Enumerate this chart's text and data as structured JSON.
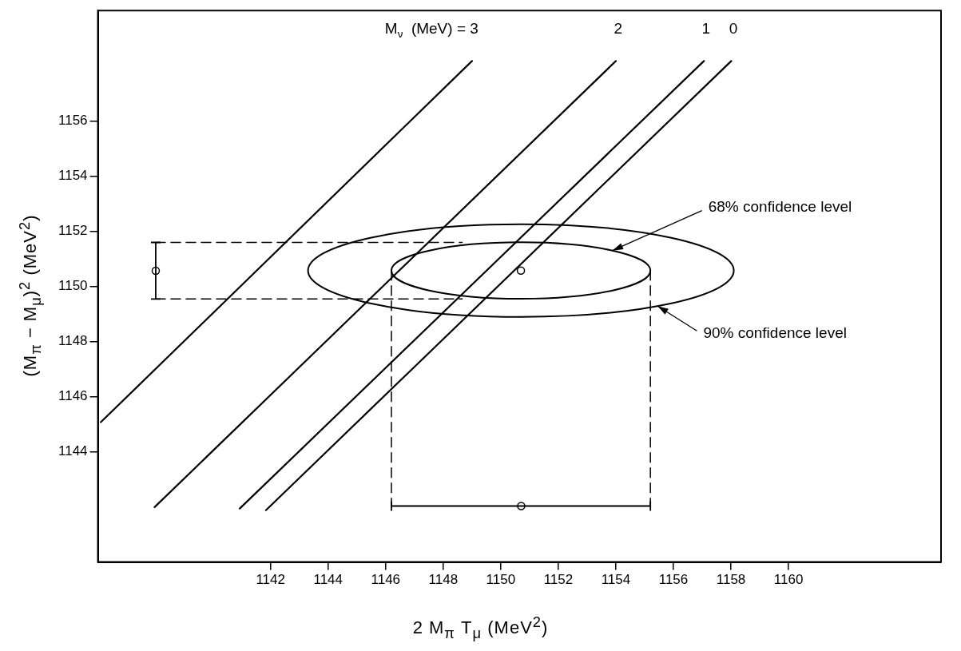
{
  "chart_data": {
    "type": "line",
    "xlabel": "2 M$_{π}$ T$_{μ}$    (MeV$^{2}$)",
    "ylabel": "(M$_{π}$  − M$_{μ}$)$^{2}$   (MeV$^{2}$)",
    "xlim": [
      1136,
      1165.3
    ],
    "ylim": [
      1140,
      1160
    ],
    "xticks": [
      1142,
      1144,
      1146,
      1148,
      1150,
      1152,
      1154,
      1156,
      1158,
      1160
    ],
    "yticks": [
      1144,
      1146,
      1148,
      1150,
      1152,
      1154,
      1156
    ],
    "grid": false,
    "legend": false,
    "series": [
      {
        "type": "line",
        "marker": "none",
        "color": "#000000",
        "x": [
          1136.1,
          1149.0
        ],
        "values": [
          1145.07,
          1158.17
        ]
      },
      {
        "type": "line",
        "marker": "none",
        "color": "#000000",
        "x": [
          1137.97,
          1154.0
        ],
        "values": [
          1141.99,
          1158.17
        ]
      },
      {
        "type": "line",
        "marker": "none",
        "color": "#000000",
        "x": [
          1140.93,
          1157.06
        ],
        "values": [
          1141.94,
          1158.17
        ]
      },
      {
        "type": "line",
        "marker": "none",
        "color": "#000000",
        "x": [
          1141.84,
          1158.01
        ],
        "values": [
          1141.88,
          1158.17
        ]
      },
      {
        "type": "line",
        "marker": "none",
        "line_style": "dashed",
        "color": "#000000",
        "x": [
          1138.01,
          1148.66
        ],
        "values": [
          1151.59,
          1151.59
        ]
      },
      {
        "type": "line",
        "marker": "none",
        "line_style": "dashed",
        "color": "#000000",
        "x": [
          1138.01,
          1148.66
        ],
        "values": [
          1149.54,
          1149.54
        ]
      },
      {
        "type": "line",
        "marker": "none",
        "line_style": "dashed",
        "color": "#000000",
        "x": [
          1146.2,
          1146.2
        ],
        "values": [
          1150.57,
          1142.03
        ]
      },
      {
        "type": "line",
        "marker": "none",
        "line_style": "dashed",
        "color": "#000000",
        "x": [
          1155.2,
          1155.2
        ],
        "values": [
          1150.57,
          1142.03
        ]
      },
      {
        "type": "scatter",
        "marker": "circle",
        "color": "#000000",
        "x": [
          1138.01,
          1150.7,
          1150.71
        ],
        "values": [
          1150.56,
          1150.57,
          1142.03
        ],
        "errors": [
          [
            1149.54,
            1151.59
          ],
          null,
          null
        ],
        "xerrors": [
          null,
          null,
          [
            1146.2,
            1155.2
          ]
        ]
      }
    ],
    "annotations": [
      "M$_{ν}$  (MeV) = 3",
      "2",
      "1",
      "0",
      "68% confidence level",
      "90% confidence level"
    ]
  }
}
